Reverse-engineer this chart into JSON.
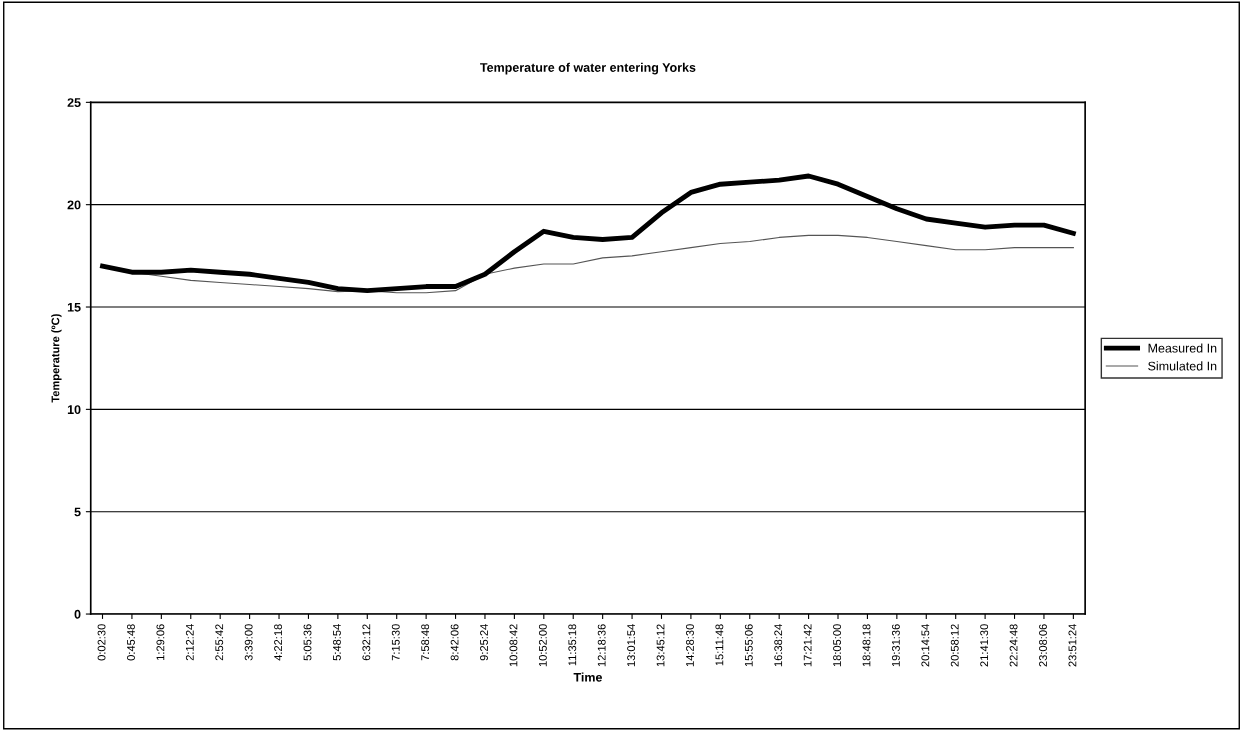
{
  "chart_data": {
    "type": "line",
    "title": "Temperature of water entering Yorks",
    "xlabel": "Time",
    "ylabel": "Temperature (ºC)",
    "categories": [
      "0:02:30",
      "0:45:48",
      "1:29:06",
      "2:12:24",
      "2:55:42",
      "3:39:00",
      "4:22:18",
      "5:05:36",
      "5:48:54",
      "6:32:12",
      "7:15:30",
      "7:58:48",
      "8:42:06",
      "9:25:24",
      "10:08:42",
      "10:52:00",
      "11:35:18",
      "12:18:36",
      "13:01:54",
      "13:45:12",
      "14:28:30",
      "15:11:48",
      "15:55:06",
      "16:38:24",
      "17:21:42",
      "18:05:00",
      "18:48:18",
      "19:31:36",
      "20:14:54",
      "20:58:12",
      "21:41:30",
      "22:24:48",
      "23:08:06",
      "23:51:24"
    ],
    "series": [
      {
        "name": "Measured In",
        "color": "#000000",
        "values": [
          17.0,
          16.7,
          16.7,
          16.8,
          16.7,
          16.6,
          16.4,
          16.2,
          15.9,
          15.8,
          15.9,
          16.0,
          16.0,
          16.6,
          17.7,
          18.7,
          18.4,
          18.3,
          18.4,
          19.6,
          20.6,
          21.0,
          21.1,
          21.2,
          21.4,
          21.0,
          20.4,
          19.8,
          19.3,
          19.1,
          18.9,
          19.0,
          19.0,
          18.6
        ]
      },
      {
        "name": "Simulated In",
        "color": "#555555",
        "values": [
          17.0,
          16.7,
          16.5,
          16.3,
          16.2,
          16.1,
          16.0,
          15.9,
          15.75,
          15.8,
          15.7,
          15.7,
          15.8,
          16.6,
          16.9,
          17.1,
          17.1,
          17.4,
          17.5,
          17.7,
          17.9,
          18.1,
          18.2,
          18.4,
          18.5,
          18.5,
          18.4,
          18.2,
          18.0,
          17.8,
          17.8,
          17.9,
          17.9,
          17.9
        ]
      }
    ],
    "ylim": [
      0,
      25
    ],
    "yticks": [
      0,
      5,
      10,
      15,
      20,
      25
    ],
    "grid": "y",
    "legend": "right"
  }
}
